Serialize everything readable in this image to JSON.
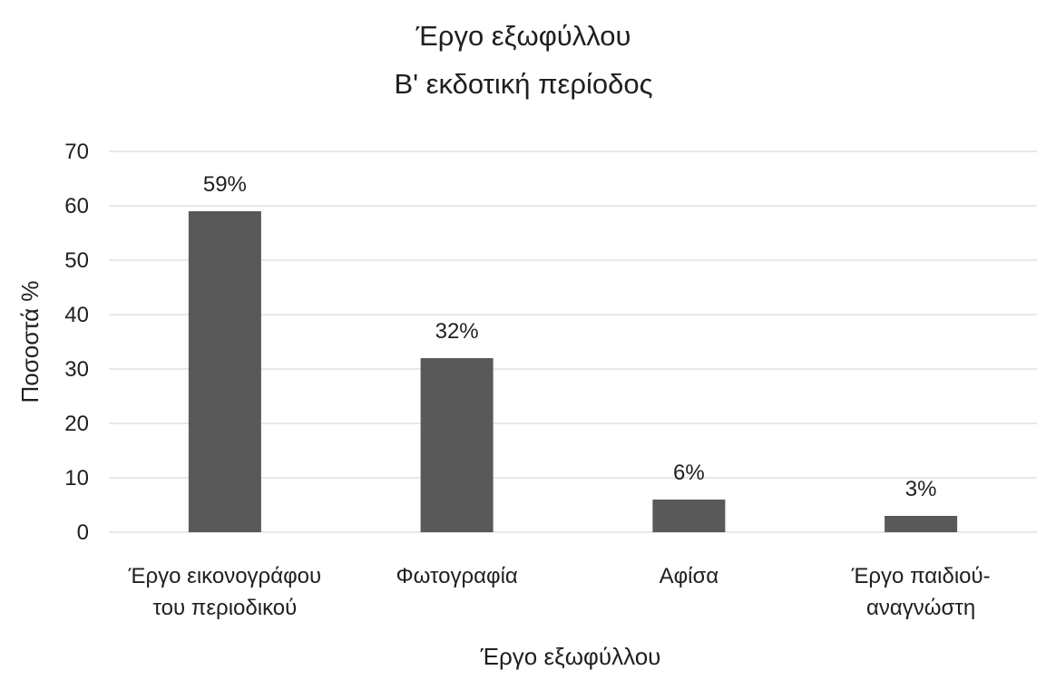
{
  "chart_data": {
    "type": "bar",
    "title": [
      "Έργο εξωφύλλου",
      "Β' εκδοτική περίοδος"
    ],
    "xlabel": "Έργο εξωφύλλου",
    "ylabel": "Ποσοστά %",
    "categories": [
      [
        "Έργο εικονογράφου",
        "του περιοδικού"
      ],
      [
        "Φωτογραφία"
      ],
      [
        "Αφίσα"
      ],
      [
        "Έργο παιδιού-",
        "αναγνώστη"
      ]
    ],
    "values": [
      59,
      32,
      6,
      3
    ],
    "data_labels": [
      "59%",
      "32%",
      "6%",
      "3%"
    ],
    "ylim": [
      0,
      70
    ],
    "yticks": [
      0,
      10,
      20,
      30,
      40,
      50,
      60,
      70
    ],
    "grid": true,
    "legend": "none",
    "colors": {
      "bar": "#595959",
      "grid": "#d9d9d9",
      "text": "#1f1f1f"
    }
  }
}
